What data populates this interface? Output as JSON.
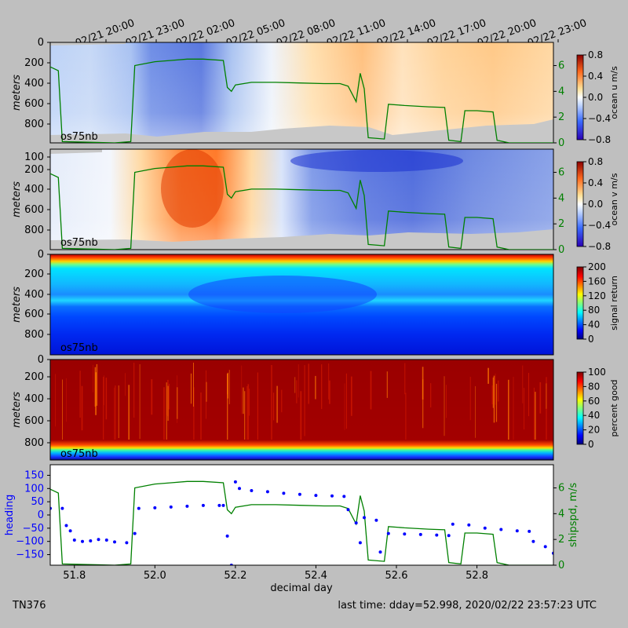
{
  "figure": {
    "cruise_id": "TN376",
    "last_time": "last time: dday=52.998,  2020/02/22 23:57:23 UTC",
    "instrument": "os75nb",
    "xlabel": "decimal day",
    "top_time_ticks": [
      "02/21 20:00",
      "02/21 23:00",
      "02/22 02:00",
      "02/22 05:00",
      "02/22 08:00",
      "02/22 11:00",
      "02/22 14:00",
      "02/22 17:00",
      "02/22 20:00",
      "02/22 23:00"
    ],
    "colors": {
      "background": "#bfbfbf",
      "heading": "#0000ff",
      "shipspd": "#008000",
      "nodata": "#c8c8c8"
    }
  },
  "chart_data": [
    {
      "type": "heatmap",
      "ylabel": "meters",
      "yticks": [
        "0",
        "200",
        "400",
        "600",
        "800"
      ],
      "colorbar_label": "ocean u m/s",
      "colorbar_ticks": [
        "0.8",
        "0.4",
        "0.0",
        "−0.4",
        "−0.8"
      ],
      "colormap": "blue-white-red",
      "xlim": [
        51.74,
        52.99
      ],
      "ylim": [
        950,
        0
      ],
      "right_axis": {
        "ticks": [
          "0",
          "2",
          "4",
          "6"
        ],
        "ylim": [
          0,
          7.8
        ]
      }
    },
    {
      "type": "heatmap",
      "ylabel": "meters",
      "yticks": [
        "100",
        "200",
        "400",
        "600",
        "800"
      ],
      "colorbar_label": "ocean v m/s",
      "colorbar_ticks": [
        "0.8",
        "0.4",
        "0.0",
        "−0.4",
        "−0.8"
      ],
      "colormap": "blue-white-red",
      "xlim": [
        51.74,
        52.99
      ],
      "ylim": [
        950,
        0
      ],
      "right_axis": {
        "ticks": [
          "0",
          "2",
          "4",
          "6"
        ],
        "ylim": [
          0,
          7.8
        ]
      }
    },
    {
      "type": "heatmap",
      "ylabel": "meters",
      "yticks": [
        "0",
        "200",
        "400",
        "600",
        "800"
      ],
      "colorbar_label": "signal return",
      "colorbar_ticks": [
        "200",
        "160",
        "120",
        "80",
        "40",
        "0"
      ],
      "colormap": "jet",
      "xlim": [
        51.74,
        52.99
      ],
      "ylim": [
        950,
        0
      ]
    },
    {
      "type": "heatmap",
      "ylabel": "meters",
      "yticks": [
        "0",
        "200",
        "400",
        "600",
        "800"
      ],
      "colorbar_label": "percent good",
      "colorbar_ticks": [
        "100",
        "80",
        "60",
        "40",
        "20",
        "0"
      ],
      "colormap": "jet",
      "xlim": [
        51.74,
        52.99
      ],
      "ylim": [
        1000,
        0
      ]
    },
    {
      "type": "scatter",
      "ylabel": "heading",
      "right_ylabel": "shipspd, m/s",
      "xlabel": "decimal day",
      "xticks": [
        "51.8",
        "52.0",
        "52.2",
        "52.4",
        "52.6",
        "52.8"
      ],
      "yticks": [
        "150",
        "100",
        "50",
        "0",
        "−50",
        "−100",
        "−150"
      ],
      "right_yticks": [
        "6",
        "4",
        "2",
        "0"
      ],
      "xlim": [
        51.74,
        52.99
      ],
      "ylim": [
        -190,
        190
      ],
      "right_ylim": [
        0,
        7.8
      ],
      "series": [
        {
          "points": [
            [
              51.74,
              25
            ],
            [
              51.77,
              25
            ],
            [
              51.78,
              -40
            ],
            [
              51.79,
              -60
            ],
            [
              51.8,
              -95
            ],
            [
              51.82,
              -100
            ],
            [
              51.84,
              -98
            ],
            [
              51.86,
              -93
            ],
            [
              51.88,
              -95
            ],
            [
              51.9,
              -102
            ],
            [
              51.93,
              -105
            ],
            [
              51.95,
              -70
            ],
            [
              51.96,
              25
            ],
            [
              52.0,
              27
            ],
            [
              52.04,
              30
            ],
            [
              52.08,
              33
            ],
            [
              52.12,
              36
            ],
            [
              52.16,
              36
            ],
            [
              52.17,
              36
            ],
            [
              52.18,
              -80
            ],
            [
              52.19,
              -190
            ],
            [
              52.2,
              125
            ],
            [
              52.21,
              100
            ],
            [
              52.24,
              92
            ],
            [
              52.28,
              88
            ],
            [
              52.32,
              82
            ],
            [
              52.36,
              78
            ],
            [
              52.4,
              74
            ],
            [
              52.44,
              72
            ],
            [
              52.47,
              70
            ],
            [
              52.48,
              20
            ],
            [
              52.5,
              -30
            ],
            [
              52.51,
              -105
            ],
            [
              52.52,
              -10
            ],
            [
              52.55,
              -20
            ],
            [
              52.56,
              -140
            ],
            [
              52.58,
              -70
            ],
            [
              52.62,
              -72
            ],
            [
              52.66,
              -74
            ],
            [
              52.7,
              -76
            ],
            [
              52.73,
              -78
            ],
            [
              52.74,
              -35
            ],
            [
              52.78,
              -38
            ],
            [
              52.82,
              -50
            ],
            [
              52.86,
              -55
            ],
            [
              52.9,
              -60
            ],
            [
              52.93,
              -62
            ],
            [
              52.94,
              -100
            ],
            [
              52.97,
              -120
            ],
            [
              52.99,
              -145
            ]
          ]
        },
        {
          "points": [
            [
              51.74,
              5.9
            ],
            [
              51.76,
              5.6
            ],
            [
              51.77,
              0.1
            ],
            [
              51.9,
              0
            ],
            [
              51.94,
              0.1
            ],
            [
              51.95,
              6.0
            ],
            [
              52.0,
              6.3
            ],
            [
              52.04,
              6.4
            ],
            [
              52.08,
              6.5
            ],
            [
              52.12,
              6.5
            ],
            [
              52.17,
              6.4
            ],
            [
              52.18,
              4.3
            ],
            [
              52.19,
              4.0
            ],
            [
              52.2,
              4.5
            ],
            [
              52.24,
              4.7
            ],
            [
              52.3,
              4.7
            ],
            [
              52.36,
              4.65
            ],
            [
              52.42,
              4.6
            ],
            [
              52.46,
              4.6
            ],
            [
              52.48,
              4.4
            ],
            [
              52.5,
              3.2
            ],
            [
              52.51,
              5.4
            ],
            [
              52.52,
              4.2
            ],
            [
              52.53,
              0.4
            ],
            [
              52.57,
              0.3
            ],
            [
              52.58,
              3.0
            ],
            [
              52.62,
              2.9
            ],
            [
              52.68,
              2.8
            ],
            [
              52.72,
              2.75
            ],
            [
              52.73,
              0.2
            ],
            [
              52.76,
              0.1
            ],
            [
              52.77,
              2.5
            ],
            [
              52.8,
              2.5
            ],
            [
              52.84,
              2.4
            ],
            [
              52.85,
              0.2
            ],
            [
              52.88,
              0
            ],
            [
              52.99,
              0
            ]
          ]
        }
      ]
    }
  ]
}
